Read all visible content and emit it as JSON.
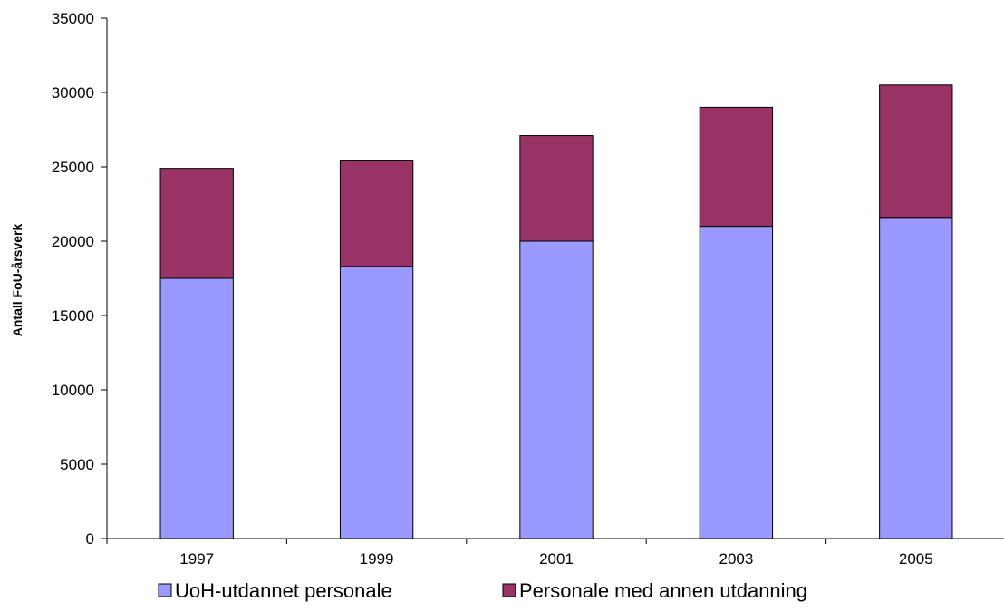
{
  "chart_data": {
    "type": "bar",
    "stacked": true,
    "categories": [
      "1997",
      "1999",
      "2001",
      "2003",
      "2005"
    ],
    "series": [
      {
        "name": "UoH-utdannet personale",
        "color": "#9999ff",
        "values": [
          17500,
          18300,
          20000,
          21000,
          21600
        ]
      },
      {
        "name": "Personale med annen utdanning",
        "color": "#993366",
        "values": [
          7400,
          7100,
          7100,
          8000,
          8900
        ]
      }
    ],
    "title": "",
    "xlabel": "",
    "ylabel": "Antall FoU-årsverk",
    "ylim": [
      0,
      35000
    ],
    "yticks": [
      0,
      5000,
      10000,
      15000,
      20000,
      25000,
      30000,
      35000
    ],
    "grid": false,
    "legend_position": "bottom"
  }
}
